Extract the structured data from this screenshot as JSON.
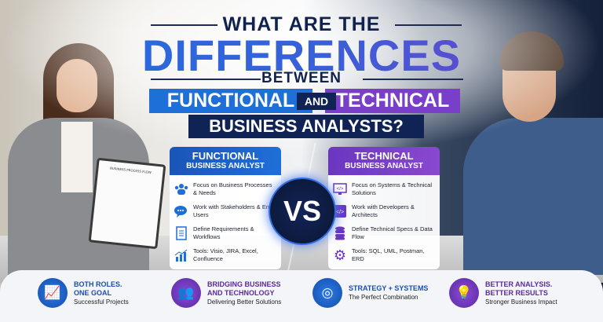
{
  "title": {
    "line1": "WHAT ARE THE",
    "line2": "DIFFERENCES",
    "line3": "BETWEEN",
    "functional": "FUNCTIONAL",
    "and": "AND",
    "technical": "TECHNICAL",
    "line5": "BUSINESS ANALYSTS?"
  },
  "clipboard": "BUSINESS PROCESS FLOW",
  "functional_card": {
    "title": "FUNCTIONAL",
    "subtitle": "BUSINESS ANALYST",
    "items": [
      {
        "icon": "people-icon",
        "text": "Focus on Business Processes & Needs"
      },
      {
        "icon": "chat-icon",
        "text": "Work with Stakeholders & End Users"
      },
      {
        "icon": "document-icon",
        "text": "Define Requirements & Workflows"
      },
      {
        "icon": "chart-icon",
        "text": "Tools: Visio, JIRA, Excel, Confluence"
      }
    ]
  },
  "technical_card": {
    "title": "TECHNICAL",
    "subtitle": "BUSINESS ANALYST",
    "items": [
      {
        "icon": "monitor-code-icon",
        "text": "Focus on Systems & Technical Solutions"
      },
      {
        "icon": "code-icon",
        "text": "Work with Developers & Architects"
      },
      {
        "icon": "database-icon",
        "text": "Define Technical Specs & Data Flow"
      },
      {
        "icon": "gear-icon",
        "text": "Tools: SQL, UML, Postman, ERD"
      }
    ]
  },
  "vs": "VS",
  "footer": [
    {
      "icon": "growth-chart-icon",
      "heading1": "BOTH ROLES.",
      "heading2": "ONE GOAL",
      "sub": "Successful Projects",
      "color": "#1e6fd8"
    },
    {
      "icon": "team-icon",
      "heading1": "BRIDGING BUSINESS",
      "heading2": "AND TECHNOLOGY",
      "sub": "Delivering Better Solutions",
      "color": "#7a3fc8"
    },
    {
      "icon": "target-icon",
      "heading1": "STRATEGY + SYSTEMS",
      "heading2": "",
      "sub": "The Perfect Combination",
      "color": "#1e6fd8"
    },
    {
      "icon": "lightbulb-icon",
      "heading1": "BETTER ANALYSIS.",
      "heading2": "BETTER RESULTS",
      "sub": "Stronger Business Impact",
      "color": "#7a3fc8"
    }
  ]
}
